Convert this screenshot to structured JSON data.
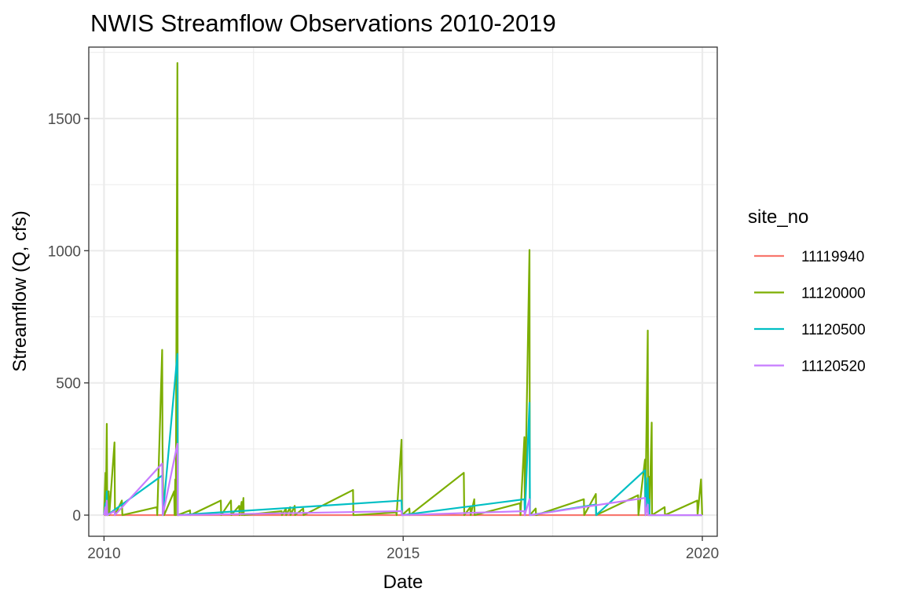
{
  "chart_data": {
    "type": "line",
    "title": "NWIS Streamflow Observations 2010-2019",
    "xlabel": "Date",
    "ylabel": "Streamflow (Q, cfs)",
    "xlim": [
      "2009-09-30",
      "2020-04-01"
    ],
    "ylim": [
      -80,
      1770
    ],
    "x_ticks": [
      "2010-01-01",
      "2015-01-01",
      "2020-01-01"
    ],
    "x_tick_labels": [
      "2010",
      "2015",
      "2020"
    ],
    "y_ticks": [
      0,
      500,
      1000,
      1500
    ],
    "y_tick_labels": [
      "0",
      "500",
      "1000",
      "1500"
    ],
    "grid": true,
    "legend": {
      "title": "site_no",
      "position": "right"
    },
    "series": [
      {
        "name": "11119940",
        "color": "#F8766D",
        "points": [
          [
            "2010-01-01",
            0
          ],
          [
            "2019-12-31",
            0
          ]
        ]
      },
      {
        "name": "11120000",
        "color": "#7CAE00",
        "points": [
          [
            "2010-01-01",
            0
          ],
          [
            "2010-01-10",
            160
          ],
          [
            "2010-01-12",
            0
          ],
          [
            "2010-01-18",
            345
          ],
          [
            "2010-01-21",
            0
          ],
          [
            "2010-01-30",
            90
          ],
          [
            "2010-02-02",
            0
          ],
          [
            "2010-03-06",
            275
          ],
          [
            "2010-03-09",
            0
          ],
          [
            "2010-04-20",
            55
          ],
          [
            "2010-04-23",
            0
          ],
          [
            "2010-11-20",
            30
          ],
          [
            "2010-11-22",
            0
          ],
          [
            "2010-12-22",
            625
          ],
          [
            "2010-12-24",
            270
          ],
          [
            "2010-12-28",
            80
          ],
          [
            "2011-01-03",
            0
          ],
          [
            "2011-03-05",
            90
          ],
          [
            "2011-03-08",
            0
          ],
          [
            "2011-03-12",
            135
          ],
          [
            "2011-03-15",
            0
          ],
          [
            "2011-03-25",
            1710
          ],
          [
            "2011-03-27",
            0
          ],
          [
            "2011-06-10",
            18
          ],
          [
            "2011-06-12",
            0
          ],
          [
            "2011-12-15",
            55
          ],
          [
            "2011-12-17",
            0
          ],
          [
            "2012-02-15",
            55
          ],
          [
            "2012-02-17",
            0
          ],
          [
            "2012-04-05",
            35
          ],
          [
            "2012-04-07",
            0
          ],
          [
            "2012-04-20",
            50
          ],
          [
            "2012-04-22",
            0
          ],
          [
            "2012-05-01",
            65
          ],
          [
            "2012-05-03",
            0
          ],
          [
            "2012-12-20",
            15
          ],
          [
            "2012-12-22",
            0
          ],
          [
            "2013-01-15",
            25
          ],
          [
            "2013-01-17",
            0
          ],
          [
            "2013-02-10",
            30
          ],
          [
            "2013-02-12",
            0
          ],
          [
            "2013-03-10",
            35
          ],
          [
            "2013-03-12",
            0
          ],
          [
            "2013-05-01",
            25
          ],
          [
            "2013-05-03",
            0
          ],
          [
            "2014-03-01",
            95
          ],
          [
            "2014-03-03",
            0
          ],
          [
            "2014-11-20",
            10
          ],
          [
            "2014-11-22",
            0
          ],
          [
            "2014-12-22",
            285
          ],
          [
            "2014-12-25",
            0
          ],
          [
            "2015-02-08",
            25
          ],
          [
            "2015-02-10",
            0
          ],
          [
            "2016-01-06",
            160
          ],
          [
            "2016-01-09",
            0
          ],
          [
            "2016-02-15",
            30
          ],
          [
            "2016-02-17",
            0
          ],
          [
            "2016-03-10",
            60
          ],
          [
            "2016-03-12",
            0
          ],
          [
            "2016-12-15",
            45
          ],
          [
            "2016-12-17",
            0
          ],
          [
            "2017-01-10",
            295
          ],
          [
            "2017-01-13",
            0
          ],
          [
            "2017-02-10",
            1003
          ],
          [
            "2017-02-12",
            0
          ],
          [
            "2017-03-20",
            25
          ],
          [
            "2017-03-22",
            0
          ],
          [
            "2018-01-08",
            60
          ],
          [
            "2018-01-10",
            0
          ],
          [
            "2018-03-22",
            80
          ],
          [
            "2018-03-24",
            0
          ],
          [
            "2018-12-05",
            75
          ],
          [
            "2018-12-07",
            0
          ],
          [
            "2019-01-16",
            210
          ],
          [
            "2019-01-18",
            0
          ],
          [
            "2019-02-02",
            698
          ],
          [
            "2019-02-04",
            0
          ],
          [
            "2019-02-10",
            145
          ],
          [
            "2019-02-12",
            0
          ],
          [
            "2019-02-26",
            350
          ],
          [
            "2019-02-28",
            0
          ],
          [
            "2019-05-16",
            30
          ],
          [
            "2019-05-18",
            0
          ],
          [
            "2019-12-01",
            55
          ],
          [
            "2019-12-03",
            0
          ],
          [
            "2019-12-24",
            135
          ],
          [
            "2019-12-31",
            0
          ]
        ]
      },
      {
        "name": "11120500",
        "color": "#00BFC4",
        "points": [
          [
            "2010-01-01",
            0
          ],
          [
            "2010-01-10",
            45
          ],
          [
            "2010-01-13",
            0
          ],
          [
            "2010-01-18",
            90
          ],
          [
            "2010-01-21",
            0
          ],
          [
            "2010-12-22",
            150
          ],
          [
            "2010-12-26",
            0
          ],
          [
            "2011-03-25",
            610
          ],
          [
            "2011-03-28",
            0
          ],
          [
            "2014-12-22",
            55
          ],
          [
            "2014-12-25",
            0
          ],
          [
            "2017-01-10",
            60
          ],
          [
            "2017-01-13",
            0
          ],
          [
            "2017-02-10",
            425
          ],
          [
            "2017-02-13",
            0
          ],
          [
            "2018-03-22",
            40
          ],
          [
            "2018-03-24",
            0
          ],
          [
            "2019-01-16",
            170
          ],
          [
            "2019-01-19",
            0
          ],
          [
            "2019-02-02",
            140
          ],
          [
            "2019-02-05",
            0
          ],
          [
            "2019-02-10",
            60
          ],
          [
            "2019-02-12",
            0
          ],
          [
            "2019-12-31",
            0
          ]
        ]
      },
      {
        "name": "11120520",
        "color": "#C77CFF",
        "points": [
          [
            "2010-01-01",
            0
          ],
          [
            "2010-01-10",
            30
          ],
          [
            "2010-01-12",
            0
          ],
          [
            "2010-01-18",
            55
          ],
          [
            "2010-01-21",
            0
          ],
          [
            "2010-03-06",
            15
          ],
          [
            "2010-03-08",
            0
          ],
          [
            "2010-12-22",
            195
          ],
          [
            "2010-12-26",
            0
          ],
          [
            "2011-03-25",
            270
          ],
          [
            "2011-03-28",
            0
          ],
          [
            "2014-12-22",
            15
          ],
          [
            "2014-12-24",
            0
          ],
          [
            "2017-01-10",
            15
          ],
          [
            "2017-01-12",
            0
          ],
          [
            "2017-02-10",
            60
          ],
          [
            "2017-02-12",
            0
          ],
          [
            "2019-01-16",
            65
          ],
          [
            "2019-01-19",
            0
          ],
          [
            "2019-02-02",
            40
          ],
          [
            "2019-02-04",
            0
          ],
          [
            "2019-12-31",
            0
          ]
        ]
      }
    ]
  }
}
